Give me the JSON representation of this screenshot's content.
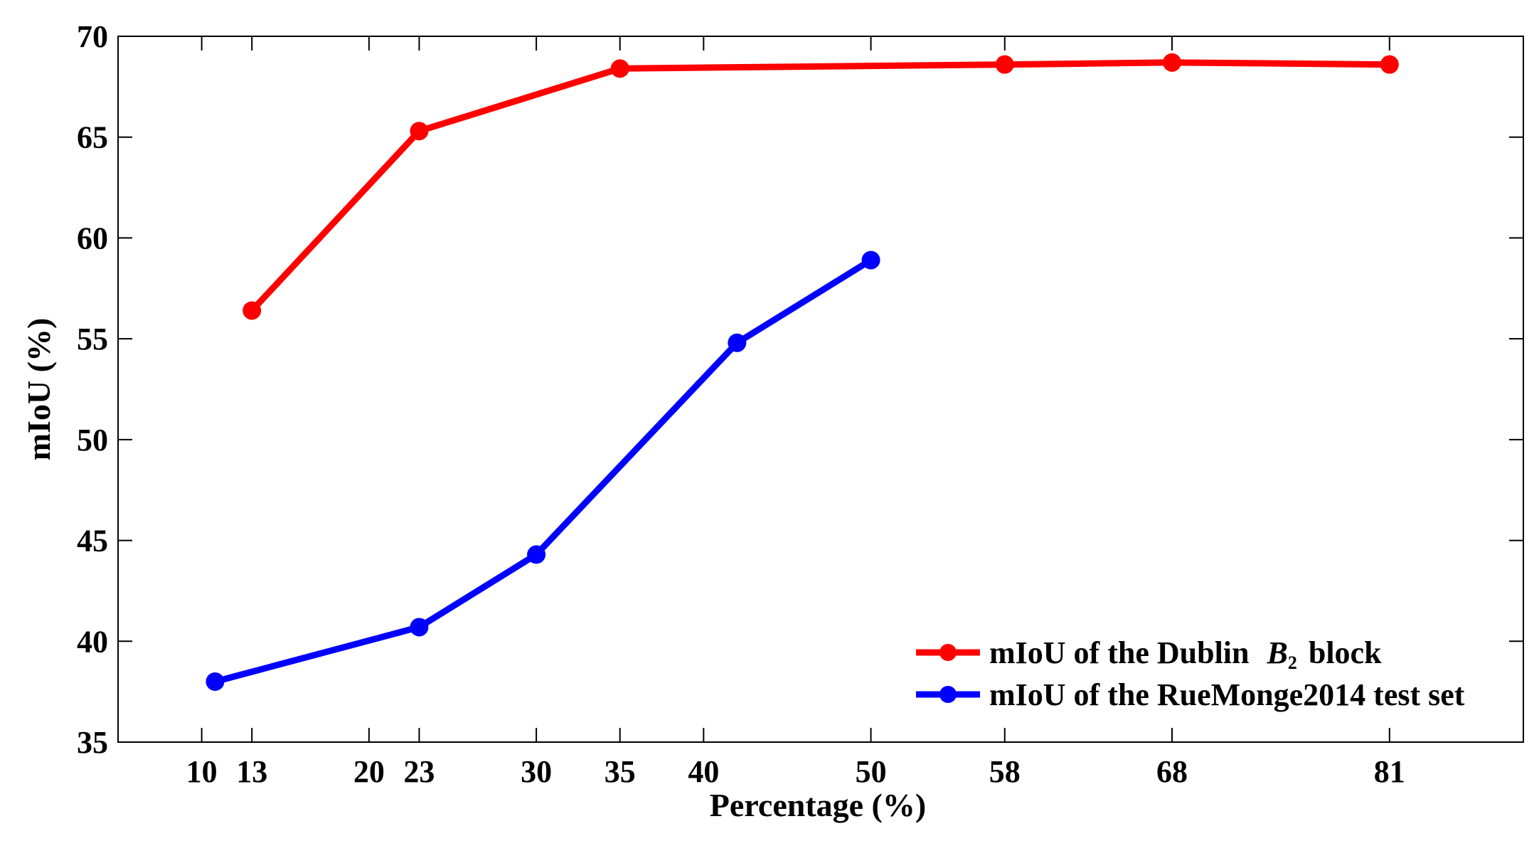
{
  "chart_data": {
    "type": "line",
    "xlabel": "Percentage (%)",
    "ylabel": "mIoU (%)",
    "xlim": [
      5,
      89
    ],
    "ylim": [
      35,
      70
    ],
    "xticks": [
      10,
      13,
      20,
      23,
      30,
      35,
      40,
      50,
      58,
      68,
      81
    ],
    "yticks": [
      35,
      40,
      45,
      50,
      55,
      60,
      65,
      70
    ],
    "grid": false,
    "legend_position": "bottom-right",
    "series": [
      {
        "name": "mIoU of the Dublin",
        "name_math": "B",
        "name_math_sub": "2",
        "name_suffix": "block",
        "color": "#ff0000",
        "x": [
          13,
          23,
          35,
          58,
          68,
          81
        ],
        "y": [
          56.4,
          65.3,
          68.4,
          68.6,
          68.7,
          68.6
        ]
      },
      {
        "name": "mIoU of the RueMonge2014 test set",
        "color": "#0000ff",
        "x": [
          10.8,
          23,
          30,
          42,
          50
        ],
        "y": [
          38.0,
          40.7,
          44.3,
          54.8,
          58.9
        ]
      }
    ]
  }
}
